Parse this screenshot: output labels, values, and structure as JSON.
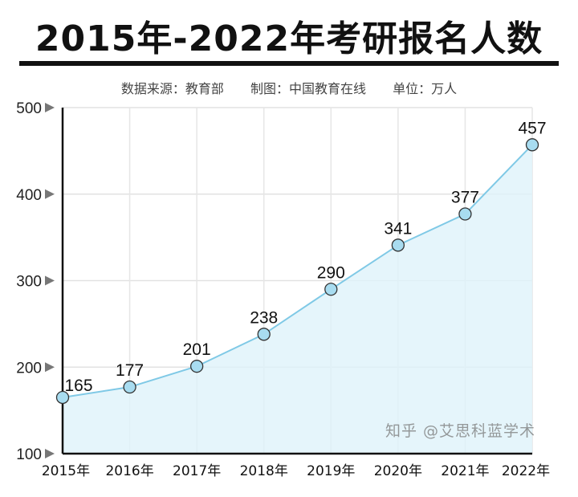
{
  "chart_data": {
    "type": "area",
    "title": "2015年-2022年考研报名人数",
    "subtitle": {
      "source": "数据来源：教育部",
      "maker": "制图：中国教育在线",
      "unit": "单位：万人"
    },
    "categories": [
      "2015年",
      "2016年",
      "2017年",
      "2018年",
      "2019年",
      "2020年",
      "2021年",
      "2022年"
    ],
    "values": [
      165,
      177,
      201,
      238,
      290,
      341,
      377,
      457
    ],
    "ylim": [
      100,
      500
    ],
    "yticks": [
      100,
      200,
      300,
      400,
      500
    ],
    "grid": true,
    "line_color": "#7fc9e6",
    "fill_color": "#dff2fa",
    "marker_color": "#a8dcf0"
  },
  "watermark": "知乎 @艾思科蓝学术"
}
